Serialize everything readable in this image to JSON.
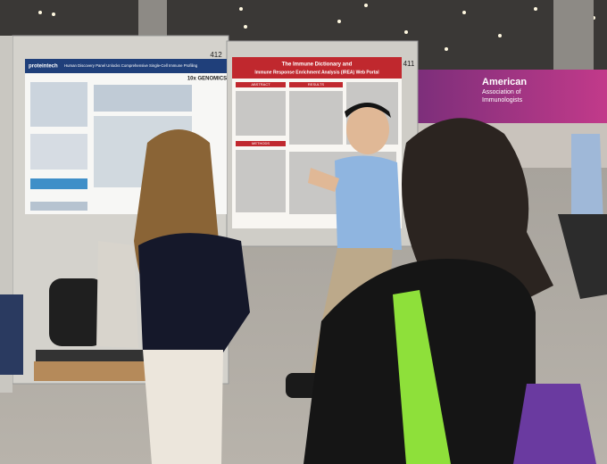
{
  "booths": [
    {
      "number": "412",
      "poster": {
        "logo": "proteintech",
        "title": "Human Discovery Panel Unlocks Comprehensive Single-Cell Immune Profiling",
        "sponsor": "10x GENOMICS"
      }
    },
    {
      "number": "411",
      "poster": {
        "title_lines": [
          "The Immune Dictionary and",
          "Immune Response Enrichment Analysis (IREA) Web Portal"
        ],
        "sections": [
          "ABSTRACT",
          "RESULTS",
          "METHODS"
        ]
      }
    }
  ],
  "banner": {
    "lines": [
      "American",
      "Association of",
      "Immunologists"
    ]
  }
}
